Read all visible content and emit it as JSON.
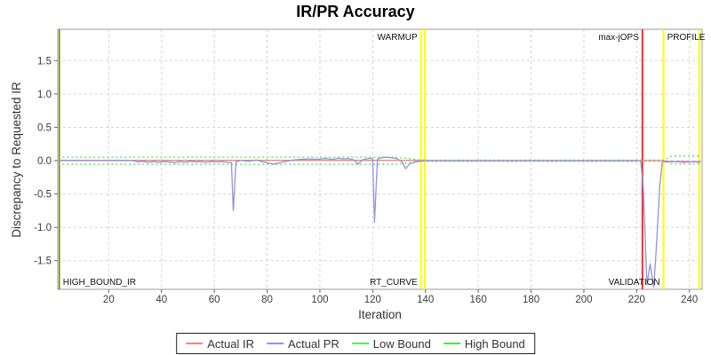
{
  "title": "IR/PR Accuracy",
  "chart_data": {
    "type": "line",
    "title": "IR/PR Accuracy",
    "xlabel": "Iteration",
    "ylabel": "Discrepancy to Requested IR",
    "xlim": [
      0.7,
      244.8
    ],
    "ylim": [
      -1.93,
      1.97
    ],
    "xticks": [
      20,
      40,
      60,
      80,
      100,
      120,
      140,
      160,
      180,
      200,
      220,
      240
    ],
    "yticks": [
      1.5,
      1.0,
      0.5,
      0.0,
      -0.5,
      -1.0,
      -1.5
    ],
    "grid": true,
    "legend_position": "bottom",
    "colors": {
      "grid": "#d4d4d4",
      "plot_border": "#999999",
      "tick_text": "#3c3c3c",
      "axis_label_text": "#333333",
      "event_label_text": "#111111"
    },
    "series": [
      {
        "name": "Low Bound",
        "color": "#4ce64c",
        "style": "dotted",
        "points": [
          [
            0.8,
            -0.056
          ],
          [
            128.5,
            -0.056
          ],
          [
            138.6,
            -0.008
          ],
          [
            230.3,
            -0.008
          ],
          [
            233.5,
            -0.052
          ],
          [
            244.3,
            -0.052
          ]
        ]
      },
      {
        "name": "High Bound",
        "color": "#4ce64c",
        "style": "dotted",
        "points": [
          [
            0.8,
            0.052
          ],
          [
            128.5,
            0.052
          ],
          [
            138.6,
            0.008
          ],
          [
            230.3,
            0.008
          ],
          [
            233.5,
            0.07
          ],
          [
            244.3,
            0.07
          ]
        ]
      },
      {
        "name": "Actual IR",
        "color": "#f08585",
        "style": "solid",
        "points": [
          [
            0.8,
            0.004
          ],
          [
            136,
            0.004
          ],
          [
            139,
            0.0
          ],
          [
            229.5,
            0.0
          ],
          [
            231.5,
            -0.008
          ],
          [
            234,
            -0.012
          ],
          [
            238,
            -0.01
          ],
          [
            241,
            -0.014
          ],
          [
            244.3,
            -0.012
          ]
        ]
      },
      {
        "name": "Actual PR",
        "color": "#9292dd",
        "style": "solid",
        "points": [
          [
            0.8,
            0.0
          ],
          [
            29,
            0.0
          ],
          [
            31,
            -0.02
          ],
          [
            33,
            -0.01
          ],
          [
            35,
            -0.025
          ],
          [
            37,
            -0.015
          ],
          [
            39,
            -0.025
          ],
          [
            41,
            -0.015
          ],
          [
            43,
            -0.02
          ],
          [
            45,
            -0.03
          ],
          [
            47,
            -0.015
          ],
          [
            49,
            -0.025
          ],
          [
            51,
            -0.01
          ],
          [
            53,
            -0.02
          ],
          [
            55,
            -0.015
          ],
          [
            57,
            -0.025
          ],
          [
            59,
            -0.015
          ],
          [
            61,
            -0.02
          ],
          [
            63,
            -0.015
          ],
          [
            65,
            -0.025
          ],
          [
            66.5,
            -0.03
          ],
          [
            67.2,
            -0.75
          ],
          [
            68.2,
            -0.02
          ],
          [
            70,
            0.005
          ],
          [
            73,
            -0.01
          ],
          [
            76,
            0.01
          ],
          [
            78,
            -0.015
          ],
          [
            80,
            -0.03
          ],
          [
            82,
            -0.05
          ],
          [
            84,
            -0.04
          ],
          [
            86,
            -0.02
          ],
          [
            88,
            -0.005
          ],
          [
            90,
            0.01
          ],
          [
            93,
            0.02
          ],
          [
            96,
            0.025
          ],
          [
            99,
            0.02
          ],
          [
            102,
            0.03
          ],
          [
            105,
            0.02
          ],
          [
            107,
            0.035
          ],
          [
            109,
            0.025
          ],
          [
            111,
            0.03
          ],
          [
            113,
            0.01
          ],
          [
            114.5,
            -0.055
          ],
          [
            116,
            0.01
          ],
          [
            117.5,
            0.025
          ],
          [
            119,
            0.035
          ],
          [
            120,
            0.03
          ],
          [
            120.7,
            -0.92
          ],
          [
            121.8,
            0.02
          ],
          [
            123,
            0.04
          ],
          [
            125,
            0.05
          ],
          [
            127,
            0.045
          ],
          [
            129,
            0.03
          ],
          [
            131,
            -0.01
          ],
          [
            132.5,
            -0.12
          ],
          [
            134,
            -0.05
          ],
          [
            136,
            -0.02
          ],
          [
            138,
            -0.008
          ],
          [
            140,
            -0.002
          ],
          [
            221.5,
            -0.002
          ],
          [
            222.5,
            -0.4
          ],
          [
            223.9,
            -1.86
          ],
          [
            225.1,
            -1.55
          ],
          [
            226.5,
            -1.9
          ],
          [
            227.7,
            -1.15
          ],
          [
            228.7,
            -0.4
          ],
          [
            229.7,
            -0.015
          ],
          [
            232,
            -0.02
          ],
          [
            235,
            -0.015
          ],
          [
            238,
            -0.025
          ],
          [
            241,
            -0.018
          ],
          [
            244.3,
            -0.025
          ]
        ]
      }
    ],
    "event_lines": [
      {
        "x": 1.3,
        "color": "#808000",
        "width": 1.5
      },
      {
        "x": 138.3,
        "color": "#ffff00",
        "width": 2
      },
      {
        "x": 139.7,
        "color": "#ffff00",
        "width": 2
      },
      {
        "x": 222.2,
        "color": "#ff2b2b",
        "width": 2
      },
      {
        "x": 230.2,
        "color": "#ffff00",
        "width": 2
      },
      {
        "x": 243.8,
        "color": "#ffff00",
        "width": 2
      }
    ],
    "event_labels": [
      {
        "text": "HIGH_BOUND_IR",
        "x": 1.3,
        "pos": "bottom",
        "side": "right"
      },
      {
        "text": "WARMUP",
        "x": 138.3,
        "pos": "top",
        "side": "left"
      },
      {
        "text": "RT_CURVE",
        "x": 138.3,
        "pos": "bottom",
        "side": "left"
      },
      {
        "text": "max-jOPS",
        "x": 222.2,
        "pos": "top",
        "side": "left"
      },
      {
        "text": "VALIDATION",
        "x": 230.2,
        "pos": "bottom",
        "side": "left"
      },
      {
        "text": "PROFILE",
        "x": 230.2,
        "pos": "top",
        "side": "right"
      }
    ]
  },
  "legend": {
    "items": [
      {
        "label": "Actual IR",
        "color": "#f08585"
      },
      {
        "label": "Actual PR",
        "color": "#9292dd"
      },
      {
        "label": "Low Bound",
        "color": "#55ee55"
      },
      {
        "label": "High Bound",
        "color": "#4ce64c"
      }
    ]
  }
}
